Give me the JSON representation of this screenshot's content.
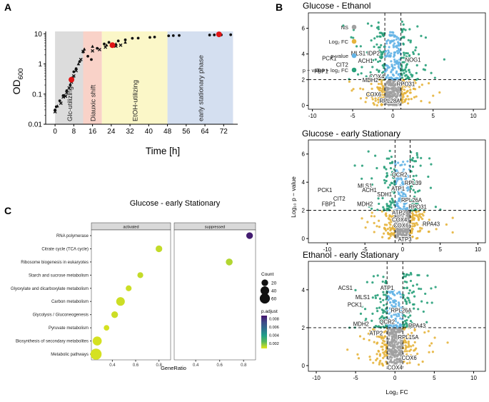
{
  "panel_labels": {
    "a": "A",
    "b": "B",
    "c": "C"
  },
  "chart_data": [
    {
      "id": "A",
      "type": "scatter",
      "title": "",
      "xlabel": "Time [h]",
      "ylabel_main": "OD",
      "ylabel_sub": "600",
      "yscale": "log",
      "xlim": [
        -4,
        78
      ],
      "ylim": [
        0.01,
        12
      ],
      "xticks": [
        "0",
        "8",
        "16",
        "24",
        "32",
        "40",
        "48",
        "56",
        "64",
        "72"
      ],
      "xtick_values": [
        0,
        8,
        16,
        24,
        32,
        40,
        48,
        56,
        64,
        72
      ],
      "yticks": [
        "0.01",
        "0.1",
        "1",
        "10"
      ],
      "ytick_values": [
        0.01,
        0.1,
        1,
        10
      ],
      "phases": [
        {
          "label": "Glc-utilizing",
          "x0": 0,
          "x1": 12,
          "color": "#dcdcdc"
        },
        {
          "label": "Diauxic shift",
          "x0": 12,
          "x1": 20,
          "color": "#f9d2c8"
        },
        {
          "label": "EtOH-utilizing",
          "x0": 20,
          "x1": 48,
          "color": "#fbf7c8"
        },
        {
          "label": "early stationary phase",
          "x0": 48,
          "x1": 76,
          "color": "#d4dff0"
        }
      ],
      "series": [
        {
          "name": "circles",
          "marker": "circle",
          "points": [
            [
              0,
              0.03
            ],
            [
              0.5,
              0.038
            ],
            [
              2,
              0.06
            ],
            [
              3.5,
              0.09
            ],
            [
              5,
              0.13
            ],
            [
              6.5,
              0.2
            ],
            [
              7.5,
              0.35
            ],
            [
              8,
              0.55
            ],
            [
              9,
              0.7
            ],
            [
              10.5,
              1.2
            ],
            [
              12,
              2.5
            ],
            [
              14,
              1.8
            ],
            [
              15.5,
              1.4
            ],
            [
              18,
              3.3
            ],
            [
              21,
              4.6
            ],
            [
              23,
              5.2
            ],
            [
              27,
              5.8
            ],
            [
              30,
              6.3
            ],
            [
              33,
              7.1
            ],
            [
              35.5,
              7.2
            ],
            [
              40.5,
              7.6
            ],
            [
              42.5,
              7.8
            ],
            [
              48.5,
              8.6
            ],
            [
              50.5,
              8.7
            ],
            [
              53,
              8.8
            ],
            [
              66,
              9.1
            ],
            [
              68,
              9.2
            ],
            [
              71,
              9.2
            ],
            [
              75,
              9.3
            ]
          ]
        },
        {
          "name": "crosses",
          "marker": "x",
          "points": [
            [
              0,
              0.026
            ],
            [
              2.5,
              0.05
            ],
            [
              3.5,
              0.08
            ],
            [
              4.5,
              0.085
            ],
            [
              5,
              0.11
            ],
            [
              6,
              0.16
            ],
            [
              7,
              0.25
            ],
            [
              8,
              0.4
            ],
            [
              9,
              0.6
            ],
            [
              11,
              1.4
            ],
            [
              12,
              2.6
            ],
            [
              16,
              2.7
            ],
            [
              19,
              3.0
            ],
            [
              21.5,
              3.6
            ],
            [
              26,
              3.9
            ],
            [
              28,
              4.2
            ]
          ]
        },
        {
          "name": "triangles",
          "marker": "triangle",
          "points": [
            [
              1,
              0.04
            ],
            [
              4,
              0.09
            ],
            [
              7.5,
              0.35
            ],
            [
              10,
              1.0
            ],
            [
              12.5,
              3.1
            ],
            [
              16,
              3.8
            ],
            [
              22,
              4.2
            ],
            [
              26,
              4.6
            ],
            [
              30,
              5.2
            ]
          ]
        },
        {
          "name": "sampling points",
          "marker": "circle",
          "color": "#e01515",
          "points": [
            [
              7,
              0.3
            ],
            [
              24.5,
              4.2
            ],
            [
              70,
              9.6
            ]
          ]
        }
      ]
    },
    {
      "id": "B-top",
      "type": "scatter",
      "title": "Glucose - Ethanol",
      "xlabel": "",
      "ylabel": "",
      "xlim": [
        -10.5,
        11.5
      ],
      "ylim": [
        -0.3,
        7.2
      ],
      "xticks": [
        "-10",
        "-5",
        "0",
        "5",
        "10"
      ],
      "xtick_values": [
        -10,
        -5,
        0,
        5,
        10
      ],
      "yticks": [
        "0",
        "2",
        "4",
        "6"
      ],
      "ytick_values": [
        0,
        2,
        4,
        6
      ],
      "thresholds": {
        "log2fc": [
          -1,
          1
        ],
        "p": 2
      },
      "legend": {
        "position": "top-left",
        "items": [
          {
            "label": "NS",
            "color": "#a0a0a0"
          },
          {
            "label": "Log₂ FC",
            "color": "#e6b43c"
          },
          {
            "label": "p-value",
            "color": "#64b4e6"
          },
          {
            "label": "p − value + log₂ FC",
            "color": "#28a07a"
          }
        ]
      },
      "gene_labels": [
        {
          "text": "PCK1",
          "x": -7.9,
          "y": 3.5
        },
        {
          "text": "MLS1",
          "x": -4.3,
          "y": 3.9
        },
        {
          "text": "IDP2",
          "x": -2.4,
          "y": 3.9
        },
        {
          "text": "ACH1",
          "x": -3.4,
          "y": 3.3
        },
        {
          "text": "CIT2",
          "x": -6.3,
          "y": 3.0
        },
        {
          "text": "FBP1",
          "x": -8.9,
          "y": 2.5
        },
        {
          "text": "COX4",
          "x": -2.0,
          "y": 2.1
        },
        {
          "text": "MDH2",
          "x": -2.8,
          "y": 1.8
        },
        {
          "text": "COX6",
          "x": -2.4,
          "y": 0.7
        },
        {
          "text": "NOG1",
          "x": 2.5,
          "y": 3.4
        },
        {
          "text": "RPO31",
          "x": 1.6,
          "y": 1.5
        },
        {
          "text": "RPL28A",
          "x": -0.4,
          "y": 0.2
        }
      ]
    },
    {
      "id": "B-middle",
      "type": "scatter",
      "title": "Glucose - early Stationary",
      "xlabel": "",
      "ylabel": "Log₁₀ p − value",
      "xlim": [
        -12.5,
        11
      ],
      "ylim": [
        -0.3,
        7
      ],
      "xticks": [
        "-10",
        "-5",
        "0",
        "5",
        "10"
      ],
      "xtick_values": [
        -10,
        -5,
        0,
        5,
        10
      ],
      "yticks": [
        "0",
        "2",
        "4",
        "6"
      ],
      "ytick_values": [
        0,
        2,
        4,
        6
      ],
      "thresholds": {
        "log2fc": [
          -1,
          1
        ],
        "p": 2
      },
      "gene_labels": [
        {
          "text": "QCR2",
          "x": -0.4,
          "y": 4.4
        },
        {
          "text": "RPL39",
          "x": 1.4,
          "y": 3.8
        },
        {
          "text": "MLS1",
          "x": -5.0,
          "y": 3.6
        },
        {
          "text": "ACH1",
          "x": -4.4,
          "y": 3.3
        },
        {
          "text": "ATP1",
          "x": -0.6,
          "y": 3.4
        },
        {
          "text": "SDH1",
          "x": -2.4,
          "y": 3.0
        },
        {
          "text": "PCK1",
          "x": -10.3,
          "y": 3.3
        },
        {
          "text": "CIT2",
          "x": -8.4,
          "y": 2.7
        },
        {
          "text": "FBP1",
          "x": -9.8,
          "y": 2.3
        },
        {
          "text": "MDH2",
          "x": -5.0,
          "y": 2.3
        },
        {
          "text": "RPL26A",
          "x": 1.2,
          "y": 2.6
        },
        {
          "text": "RPO31",
          "x": 2.0,
          "y": 2.1
        },
        {
          "text": "ATP2",
          "x": -0.5,
          "y": 1.7
        },
        {
          "text": "COX4",
          "x": -0.4,
          "y": 1.2
        },
        {
          "text": "COX6",
          "x": -0.2,
          "y": 0.8
        },
        {
          "text": "RPA43",
          "x": 3.8,
          "y": 0.9
        },
        {
          "text": "ATP3",
          "x": 0.3,
          "y": -0.2
        }
      ]
    },
    {
      "id": "B-bottom",
      "type": "scatter",
      "title": "Ethanol - early Stationary",
      "xlabel": "Log₂ FC",
      "ylabel": "",
      "xlim": [
        -11,
        11.5
      ],
      "ylim": [
        -0.3,
        5.5
      ],
      "xticks": [
        "-10",
        "-5",
        "0",
        "5",
        "10"
      ],
      "xtick_values": [
        -10,
        -5,
        0,
        5,
        10
      ],
      "yticks": [
        "0",
        "2",
        "4"
      ],
      "ytick_values": [
        0,
        2,
        4
      ],
      "thresholds": {
        "log2fc": [
          -1,
          1
        ],
        "p": 2
      },
      "gene_labels": [
        {
          "text": "ACS1",
          "x": -6.3,
          "y": 4.0
        },
        {
          "text": "ATP1",
          "x": -1.0,
          "y": 4.0
        },
        {
          "text": "MLS1",
          "x": -4.1,
          "y": 3.5
        },
        {
          "text": "PCK1",
          "x": -5.1,
          "y": 3.1
        },
        {
          "text": "RPL26A",
          "x": 0.8,
          "y": 2.8
        },
        {
          "text": "QCR2",
          "x": -1.0,
          "y": 2.2
        },
        {
          "text": "MDH2",
          "x": -4.3,
          "y": 2.1
        },
        {
          "text": "RPA43",
          "x": 2.8,
          "y": 2.0
        },
        {
          "text": "ATP2",
          "x": -2.4,
          "y": 1.6
        },
        {
          "text": "RPL15A",
          "x": 1.7,
          "y": 1.4
        },
        {
          "text": "COX6",
          "x": 1.8,
          "y": 0.3
        },
        {
          "text": "COX4",
          "x": 0.0,
          "y": -0.2
        }
      ]
    },
    {
      "id": "C",
      "type": "scatter",
      "title": "Glucose - early Stationary",
      "xlabel": "GeneRatio",
      "facets": [
        "activated",
        "suppressed"
      ],
      "facet_xlim": [
        [
          0.22,
          0.9
        ],
        [
          0.22,
          0.9
        ]
      ],
      "xticks": [
        "0.4",
        "0.6",
        "0.8"
      ],
      "xtick_values": [
        0.4,
        0.6,
        0.8
      ],
      "categories": [
        "RNA polymerase",
        "Citrate cycle (TCA cycle)",
        "Ribosome biogenesis in eukaryotes",
        "Starch and sucrose metabolism",
        "Glyoxylate and dicarboxylate metabolism",
        "Carbon metabolism",
        "Glycolysis / Gluconeogenesis",
        "Pyruvate metabolism",
        "Biosynthesis of secondary metabolites",
        "Metabolic pathways"
      ],
      "points": [
        {
          "category": "RNA polymerase",
          "facet": "suppressed",
          "gene_ratio": 0.85,
          "count": 20,
          "p_adjust": 0.0085
        },
        {
          "category": "Citrate cycle (TCA cycle)",
          "facet": "activated",
          "gene_ratio": 0.8,
          "count": 20,
          "p_adjust": 0.0012
        },
        {
          "category": "Ribosome biogenesis in eukaryotes",
          "facet": "suppressed",
          "gene_ratio": 0.68,
          "count": 22,
          "p_adjust": 0.0014
        },
        {
          "category": "Starch and sucrose metabolism",
          "facet": "activated",
          "gene_ratio": 0.64,
          "count": 14,
          "p_adjust": 0.0012
        },
        {
          "category": "Glyoxylate and dicarboxylate metabolism",
          "facet": "activated",
          "gene_ratio": 0.54,
          "count": 14,
          "p_adjust": 0.0011
        },
        {
          "category": "Carbon metabolism",
          "facet": "activated",
          "gene_ratio": 0.47,
          "count": 40,
          "p_adjust": 0.0011
        },
        {
          "category": "Glycolysis / Gluconeogenesis",
          "facet": "activated",
          "gene_ratio": 0.42,
          "count": 20,
          "p_adjust": 0.0011
        },
        {
          "category": "Pyruvate metabolism",
          "facet": "activated",
          "gene_ratio": 0.35,
          "count": 12,
          "p_adjust": 0.001
        },
        {
          "category": "Biosynthesis of secondary metabolites",
          "facet": "activated",
          "gene_ratio": 0.27,
          "count": 45,
          "p_adjust": 0.001
        },
        {
          "category": "Metabolic pathways",
          "facet": "activated",
          "gene_ratio": 0.26,
          "count": 75,
          "p_adjust": 0.001
        }
      ],
      "size_legend": {
        "title": "Count",
        "values": [
          "20",
          "40",
          "60"
        ],
        "sizes": [
          20,
          40,
          60
        ]
      },
      "color_legend": {
        "title": "p.adjust",
        "ticks": [
          "0.008",
          "0.006",
          "0.004",
          "0.002"
        ],
        "tick_values": [
          0.008,
          0.006,
          0.004,
          0.002
        ],
        "range": [
          0.0008,
          0.0088
        ],
        "colors": [
          "#e6e619",
          "#5aba5a",
          "#1f9e8a",
          "#2f6f8e",
          "#3e4a89",
          "#45136b"
        ]
      }
    }
  ]
}
